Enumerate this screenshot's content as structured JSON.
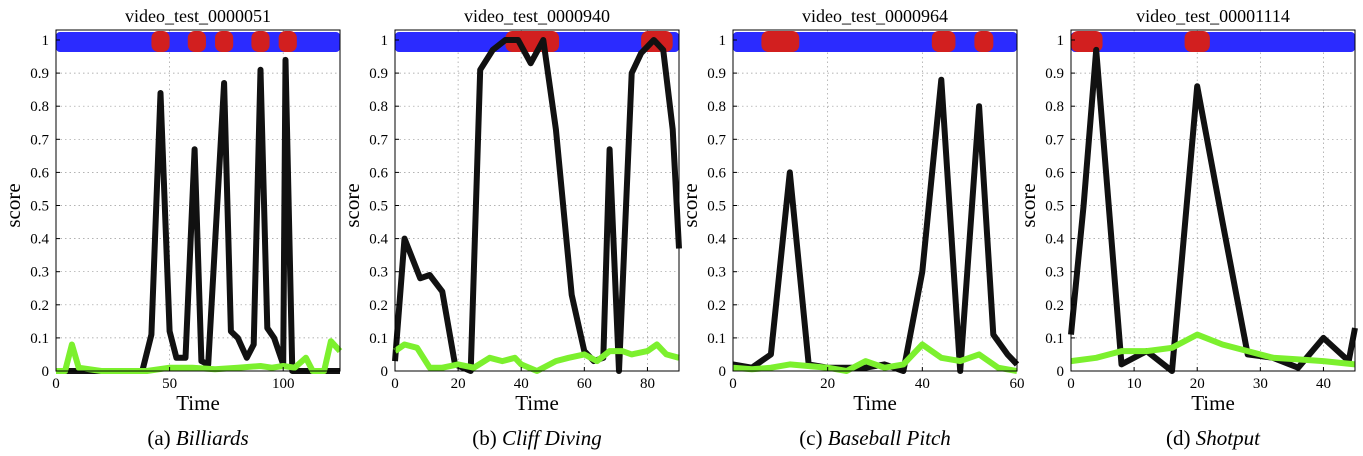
{
  "figure": {
    "score_color": "#111111",
    "baseline_color": "#7cf02e",
    "background_class_color": "#2b2bff",
    "action_class_color": "#d21f1f"
  },
  "chart_data": [
    {
      "type": "line",
      "title": "video_test_0000051",
      "caption_label": "(a)",
      "caption_name": "Billiards",
      "xlabel": "Time",
      "ylabel": "score",
      "xlim": [
        0,
        125
      ],
      "ylim": [
        0,
        1
      ],
      "xticks": [
        0,
        50,
        100
      ],
      "yticks": [
        0,
        0.1,
        0.2,
        0.3,
        0.4,
        0.5,
        0.6,
        0.7,
        0.8,
        0.9,
        1
      ],
      "grid": true,
      "series": [
        {
          "role": "score",
          "points": [
            [
              0,
              0
            ],
            [
              38,
              0
            ],
            [
              42,
              0.11
            ],
            [
              46,
              0.84
            ],
            [
              50,
              0.12
            ],
            [
              53,
              0.04
            ],
            [
              57,
              0.04
            ],
            [
              61,
              0.67
            ],
            [
              64,
              0.03
            ],
            [
              67,
              0.02
            ],
            [
              74,
              0.87
            ],
            [
              77,
              0.12
            ],
            [
              80,
              0.1
            ],
            [
              84,
              0.04
            ],
            [
              87,
              0.08
            ],
            [
              90,
              0.91
            ],
            [
              93,
              0.13
            ],
            [
              96,
              0.1
            ],
            [
              100,
              0.02
            ],
            [
              101,
              0.94
            ],
            [
              104,
              0.0
            ],
            [
              125,
              0
            ]
          ]
        },
        {
          "role": "baseline",
          "points": [
            [
              0,
              0
            ],
            [
              4,
              0.0
            ],
            [
              7,
              0.08
            ],
            [
              10,
              0.01
            ],
            [
              20,
              0.0
            ],
            [
              40,
              0.0
            ],
            [
              50,
              0.01
            ],
            [
              60,
              0.01
            ],
            [
              70,
              0.005
            ],
            [
              80,
              0.01
            ],
            [
              90,
              0.015
            ],
            [
              95,
              0.01
            ],
            [
              100,
              0.015
            ],
            [
              105,
              0.01
            ],
            [
              110,
              0.04
            ],
            [
              113,
              0.0
            ],
            [
              118,
              0.0
            ],
            [
              121,
              0.09
            ],
            [
              125,
              0.06
            ]
          ]
        }
      ],
      "segments": [
        {
          "cls": "background",
          "start": 0,
          "end": 125
        },
        {
          "cls": "action",
          "start": 42,
          "end": 50
        },
        {
          "cls": "action",
          "start": 58,
          "end": 66
        },
        {
          "cls": "action",
          "start": 70,
          "end": 78
        },
        {
          "cls": "action",
          "start": 86,
          "end": 94
        },
        {
          "cls": "action",
          "start": 98,
          "end": 106
        }
      ]
    },
    {
      "type": "line",
      "title": "video_test_0000940",
      "caption_label": "(b)",
      "caption_name": "Cliff Diving",
      "xlabel": "Time",
      "ylabel": "score",
      "xlim": [
        0,
        90
      ],
      "ylim": [
        0,
        1
      ],
      "xticks": [
        0,
        20,
        40,
        60,
        80
      ],
      "yticks": [
        0,
        0.1,
        0.2,
        0.3,
        0.4,
        0.5,
        0.6,
        0.7,
        0.8,
        0.9,
        1
      ],
      "grid": true,
      "series": [
        {
          "role": "score",
          "points": [
            [
              0,
              0.03
            ],
            [
              3,
              0.4
            ],
            [
              8,
              0.28
            ],
            [
              11,
              0.29
            ],
            [
              15,
              0.24
            ],
            [
              19,
              0.02
            ],
            [
              24,
              0.0
            ],
            [
              27,
              0.91
            ],
            [
              31,
              0.97
            ],
            [
              35,
              1.0
            ],
            [
              39,
              1.0
            ],
            [
              43,
              0.93
            ],
            [
              47,
              1.0
            ],
            [
              51,
              0.73
            ],
            [
              56,
              0.23
            ],
            [
              60,
              0.06
            ],
            [
              63,
              0.03
            ],
            [
              66,
              0.04
            ],
            [
              68,
              0.67
            ],
            [
              71,
              0.0
            ],
            [
              75,
              0.9
            ],
            [
              78,
              0.96
            ],
            [
              82,
              1.0
            ],
            [
              85,
              0.97
            ],
            [
              88,
              0.73
            ],
            [
              90,
              0.37
            ]
          ]
        },
        {
          "role": "baseline",
          "points": [
            [
              0,
              0.06
            ],
            [
              3,
              0.08
            ],
            [
              7,
              0.07
            ],
            [
              11,
              0.01
            ],
            [
              15,
              0.01
            ],
            [
              20,
              0.02
            ],
            [
              25,
              0.01
            ],
            [
              30,
              0.04
            ],
            [
              34,
              0.03
            ],
            [
              38,
              0.04
            ],
            [
              40,
              0.02
            ],
            [
              45,
              0.0
            ],
            [
              51,
              0.03
            ],
            [
              55,
              0.04
            ],
            [
              60,
              0.05
            ],
            [
              64,
              0.03
            ],
            [
              68,
              0.06
            ],
            [
              72,
              0.06
            ],
            [
              75,
              0.05
            ],
            [
              80,
              0.06
            ],
            [
              83,
              0.08
            ],
            [
              86,
              0.05
            ],
            [
              90,
              0.04
            ]
          ]
        }
      ],
      "segments": [
        {
          "cls": "background",
          "start": 0,
          "end": 90
        },
        {
          "cls": "action",
          "start": 35,
          "end": 52
        },
        {
          "cls": "action",
          "start": 78,
          "end": 88
        }
      ]
    },
    {
      "type": "line",
      "title": "video_test_0000964",
      "caption_label": "(c)",
      "caption_name": "Baseball Pitch",
      "xlabel": "Time",
      "ylabel": "score",
      "xlim": [
        0,
        60
      ],
      "ylim": [
        0,
        1
      ],
      "xticks": [
        0,
        20,
        40,
        60
      ],
      "yticks": [
        0,
        0.1,
        0.2,
        0.3,
        0.4,
        0.5,
        0.6,
        0.7,
        0.8,
        0.9,
        1
      ],
      "grid": true,
      "series": [
        {
          "role": "score",
          "points": [
            [
              0,
              0.02
            ],
            [
              4,
              0.01
            ],
            [
              8,
              0.05
            ],
            [
              12,
              0.6
            ],
            [
              16,
              0.02
            ],
            [
              20,
              0.01
            ],
            [
              28,
              0.01
            ],
            [
              32,
              0.02
            ],
            [
              36,
              0.0
            ],
            [
              40,
              0.3
            ],
            [
              44,
              0.88
            ],
            [
              48,
              0.0
            ],
            [
              52,
              0.8
            ],
            [
              55,
              0.11
            ],
            [
              58,
              0.05
            ],
            [
              60,
              0.02
            ]
          ]
        },
        {
          "role": "baseline",
          "points": [
            [
              0,
              0.01
            ],
            [
              4,
              0.005
            ],
            [
              8,
              0.01
            ],
            [
              12,
              0.02
            ],
            [
              20,
              0.01
            ],
            [
              24,
              0.0
            ],
            [
              28,
              0.03
            ],
            [
              32,
              0.01
            ],
            [
              36,
              0.02
            ],
            [
              40,
              0.08
            ],
            [
              44,
              0.04
            ],
            [
              48,
              0.03
            ],
            [
              52,
              0.05
            ],
            [
              56,
              0.01
            ],
            [
              60,
              0.0
            ]
          ]
        }
      ],
      "segments": [
        {
          "cls": "background",
          "start": 0,
          "end": 60
        },
        {
          "cls": "action",
          "start": 6,
          "end": 14
        },
        {
          "cls": "action",
          "start": 42,
          "end": 47
        },
        {
          "cls": "action",
          "start": 51,
          "end": 55
        }
      ]
    },
    {
      "type": "line",
      "title": "video_test_00001114",
      "caption_label": "(d)",
      "caption_name": "Shotput",
      "xlabel": "Time",
      "ylabel": "score",
      "xlim": [
        0,
        45
      ],
      "ylim": [
        0,
        1
      ],
      "xticks": [
        0,
        10,
        20,
        30,
        40
      ],
      "yticks": [
        0,
        0.1,
        0.2,
        0.3,
        0.4,
        0.5,
        0.6,
        0.7,
        0.8,
        0.9,
        1
      ],
      "grid": true,
      "series": [
        {
          "role": "score",
          "points": [
            [
              0,
              0.11
            ],
            [
              2,
              0.5
            ],
            [
              4,
              0.97
            ],
            [
              8,
              0.02
            ],
            [
              12,
              0.06
            ],
            [
              16,
              0.0
            ],
            [
              20,
              0.86
            ],
            [
              24,
              0.45
            ],
            [
              28,
              0.05
            ],
            [
              32,
              0.04
            ],
            [
              36,
              0.01
            ],
            [
              40,
              0.1
            ],
            [
              44,
              0.03
            ],
            [
              45,
              0.13
            ]
          ]
        },
        {
          "role": "baseline",
          "points": [
            [
              0,
              0.03
            ],
            [
              4,
              0.04
            ],
            [
              8,
              0.06
            ],
            [
              12,
              0.06
            ],
            [
              16,
              0.07
            ],
            [
              20,
              0.11
            ],
            [
              24,
              0.08
            ],
            [
              28,
              0.06
            ],
            [
              32,
              0.04
            ],
            [
              36,
              0.035
            ],
            [
              40,
              0.03
            ],
            [
              45,
              0.02
            ]
          ]
        }
      ],
      "segments": [
        {
          "cls": "background",
          "start": 0,
          "end": 45
        },
        {
          "cls": "action",
          "start": 0,
          "end": 5
        },
        {
          "cls": "action",
          "start": 18,
          "end": 22
        }
      ]
    }
  ]
}
